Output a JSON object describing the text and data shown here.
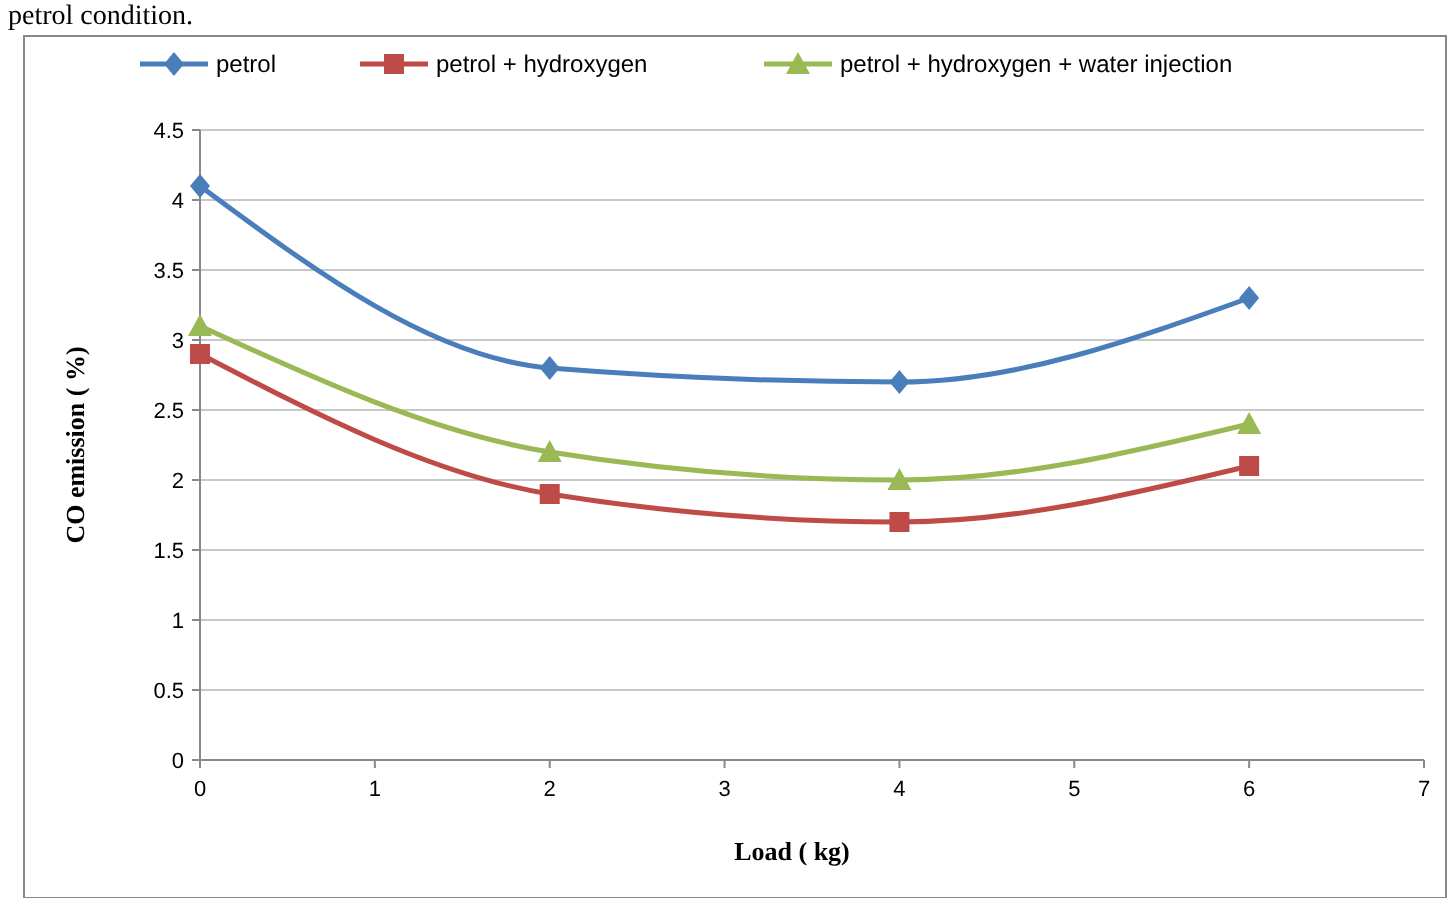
{
  "chart_data": {
    "type": "line",
    "xlabel": "Load ( kg)",
    "ylabel": "CO emission ( %)",
    "annotations": [
      "petrol condition."
    ],
    "x": [
      0,
      2,
      4,
      6
    ],
    "series": [
      {
        "name": "petrol",
        "color": "#4a7ebb",
        "marker": "diamond",
        "values": [
          4.1,
          2.8,
          2.7,
          3.3
        ]
      },
      {
        "name": "petrol + hydroxygen",
        "color": "#be4b48",
        "marker": "square",
        "values": [
          2.9,
          1.9,
          1.7,
          2.1
        ]
      },
      {
        "name": "petrol + hydroxygen + water injection",
        "color": "#98b954",
        "marker": "triangle",
        "values": [
          3.1,
          2.2,
          2.0,
          2.4
        ]
      }
    ],
    "xlim": [
      0,
      7
    ],
    "xticks": [
      0,
      1,
      2,
      3,
      4,
      5,
      6,
      7
    ],
    "ylim": [
      0,
      4.5
    ],
    "yticks": [
      0,
      0.5,
      1,
      1.5,
      2,
      2.5,
      3,
      3.5,
      4,
      4.5
    ],
    "grid": "y",
    "legend": "top",
    "line_style": "solid"
  }
}
